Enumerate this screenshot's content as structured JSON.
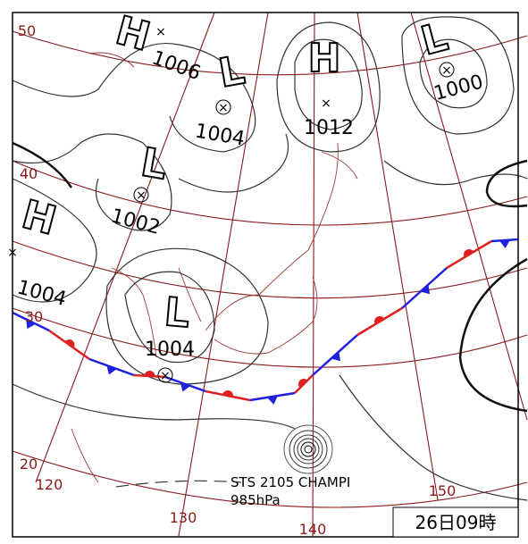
{
  "pressure_systems": [
    {
      "symbol": "H"
    },
    {
      "symbol": "L"
    },
    {
      "symbol": "H"
    },
    {
      "symbol": "L"
    },
    {
      "symbol": "L"
    },
    {
      "symbol": "H"
    },
    {
      "symbol": "L"
    }
  ],
  "isobar_labels": [
    1006,
    1004,
    1012,
    1000,
    1002,
    1004,
    1004
  ],
  "latitude_labels": [
    50,
    40,
    30,
    20
  ],
  "longitude_labels": [
    120,
    130,
    140,
    150
  ],
  "typhoon": {
    "name": "STS 2105 CHAMPI",
    "pressure": "985hPa"
  },
  "timestamp": "26日09時"
}
